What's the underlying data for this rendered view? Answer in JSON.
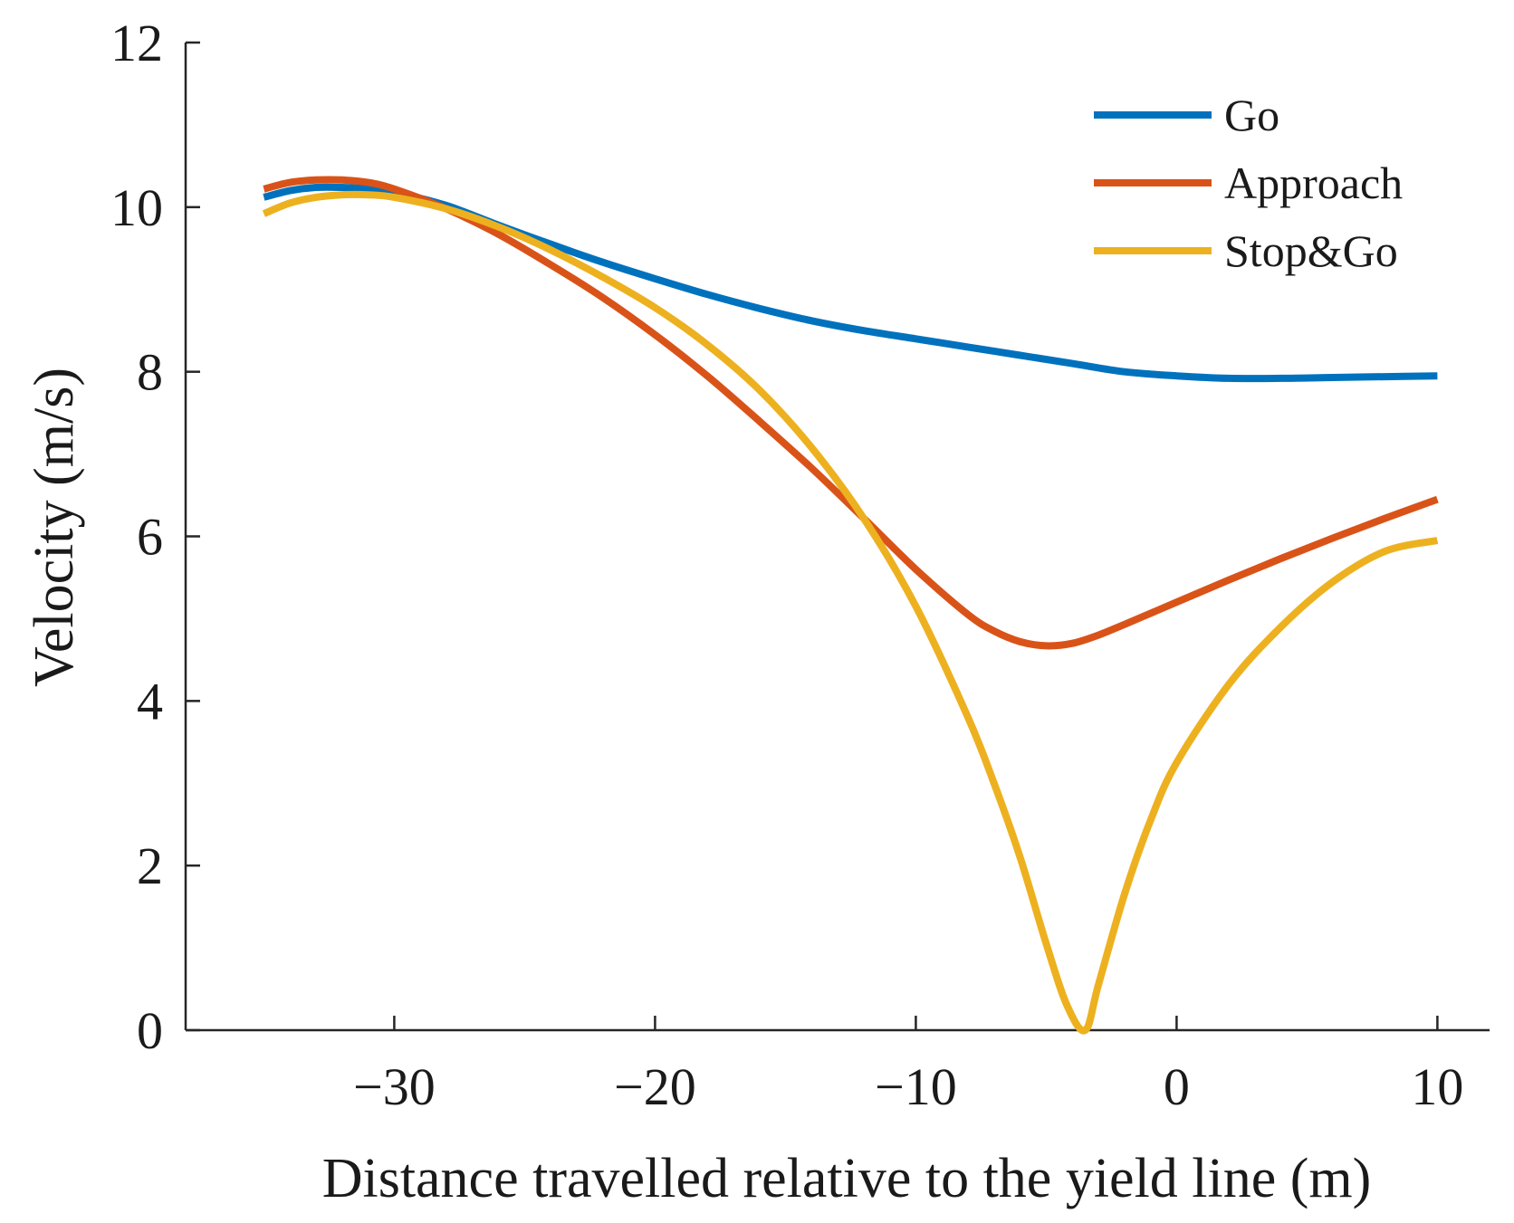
{
  "chart_data": {
    "type": "line",
    "title": "",
    "xlabel": "Distance travelled relative to the yield line (m)",
    "ylabel": "Velocity (m/s)",
    "xlim": [
      -38,
      12
    ],
    "ylim": [
      0,
      12
    ],
    "xticks": [
      -30,
      -20,
      -10,
      0,
      10
    ],
    "xtick_labels": [
      "−30",
      "−20",
      "−10",
      "0",
      "10"
    ],
    "yticks": [
      0,
      2,
      4,
      6,
      8,
      10,
      12
    ],
    "ytick_labels": [
      "0",
      "2",
      "4",
      "6",
      "8",
      "10",
      "12"
    ],
    "grid": false,
    "legend_position": "top-right",
    "series": [
      {
        "name": "Go",
        "color": "#0072BD",
        "x": [
          -35,
          -34,
          -33,
          -32,
          -31,
          -30,
          -28,
          -26,
          -24,
          -22,
          -20,
          -18,
          -16,
          -14,
          -12,
          -10,
          -8,
          -6,
          -4,
          -2,
          0,
          2,
          4,
          6,
          8,
          10
        ],
        "y": [
          10.12,
          10.2,
          10.24,
          10.24,
          10.22,
          10.18,
          10.02,
          9.78,
          9.55,
          9.33,
          9.13,
          8.94,
          8.77,
          8.62,
          8.5,
          8.4,
          8.3,
          8.2,
          8.1,
          8.0,
          7.95,
          7.92,
          7.92,
          7.93,
          7.94,
          7.95
        ]
      },
      {
        "name": "Approach",
        "color": "#D95319",
        "x": [
          -35,
          -34,
          -33,
          -32,
          -31,
          -30,
          -28,
          -26,
          -24,
          -22,
          -20,
          -18,
          -16,
          -14,
          -12,
          -10,
          -8,
          -7,
          -6,
          -5,
          -4,
          -3,
          -2,
          0,
          2,
          4,
          6,
          8,
          10
        ],
        "y": [
          10.22,
          10.3,
          10.33,
          10.33,
          10.3,
          10.22,
          9.98,
          9.67,
          9.3,
          8.9,
          8.45,
          7.95,
          7.4,
          6.83,
          6.22,
          5.6,
          5.05,
          4.85,
          4.72,
          4.67,
          4.7,
          4.8,
          4.93,
          5.2,
          5.47,
          5.73,
          5.98,
          6.22,
          6.45
        ]
      },
      {
        "name": "Stop&Go",
        "color": "#EDB120",
        "x": [
          -35,
          -34,
          -33,
          -32,
          -31,
          -30,
          -28,
          -26,
          -24,
          -22,
          -20,
          -18,
          -16,
          -14,
          -12,
          -10,
          -8,
          -7,
          -6,
          -5,
          -4.2,
          -3.5,
          -3,
          -2,
          -1,
          0,
          2,
          4,
          6,
          8,
          10
        ],
        "y": [
          9.92,
          10.05,
          10.12,
          10.15,
          10.15,
          10.12,
          9.98,
          9.76,
          9.48,
          9.15,
          8.78,
          8.33,
          7.78,
          7.08,
          6.22,
          5.15,
          3.8,
          3.0,
          2.1,
          1.05,
          0.3,
          0.0,
          0.55,
          1.65,
          2.55,
          3.25,
          4.2,
          4.9,
          5.45,
          5.82,
          5.95
        ]
      }
    ]
  }
}
